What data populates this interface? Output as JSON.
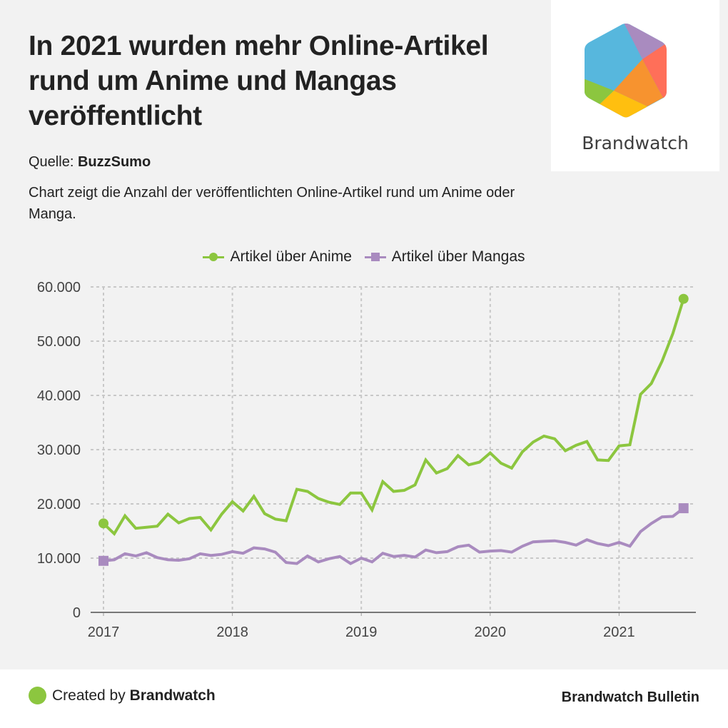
{
  "header": {
    "title": "In 2021 wurden mehr Online-Artikel rund um Anime und Mangas veröffentlicht",
    "source_label": "Quelle:",
    "source_name": "BuzzSumo",
    "subtitle": "Chart zeigt die Anzahl der veröffentlichten Online-Artikel rund um Anime oder Manga."
  },
  "logo": {
    "wordmark": "Brandwatch",
    "colors": [
      "#57b7dd",
      "#a98bbf",
      "#ff6f59",
      "#f7932f",
      "#ffbf0f",
      "#8cc63f"
    ]
  },
  "footer": {
    "created_prefix": "Created by",
    "created_brand": "Brandwatch",
    "right_label": "Brandwatch Bulletin",
    "dot_color": "#8cc63f"
  },
  "chart_data": {
    "type": "line",
    "title": "In 2021 wurden mehr Online-Artikel rund um Anime und Mangas veröffentlicht",
    "xlabel": "",
    "ylabel": "",
    "x_start": "2017-01",
    "x_interval": "month",
    "x_tick_labels": [
      "2017",
      "2018",
      "2019",
      "2020",
      "2021"
    ],
    "y_ticks": [
      0,
      10000,
      20000,
      30000,
      40000,
      50000,
      60000
    ],
    "y_tick_labels": [
      "0",
      "10.000",
      "20.000",
      "30.000",
      "40.000",
      "50.000",
      "60.000"
    ],
    "ylim": [
      0,
      60000
    ],
    "xlim_months": [
      0,
      55
    ],
    "grid": true,
    "legend_position": "top-center",
    "series": [
      {
        "name": "Artikel über Anime",
        "color": "#8cc63f",
        "marker": "circle",
        "values": [
          16400,
          14500,
          17800,
          15500,
          15700,
          15900,
          18100,
          16500,
          17300,
          17500,
          15200,
          18100,
          20400,
          18700,
          21400,
          18200,
          17200,
          16900,
          22700,
          22300,
          21000,
          20300,
          19900,
          22000,
          22000,
          18900,
          24100,
          22300,
          22500,
          23500,
          28100,
          25700,
          26500,
          28900,
          27200,
          27700,
          29400,
          27500,
          26600,
          29600,
          31400,
          32500,
          32000,
          29800,
          30800,
          31500,
          28100,
          28000,
          30700,
          30900,
          40200,
          42200,
          46300,
          51400,
          57800
        ]
      },
      {
        "name": "Artikel über Mangas",
        "color": "#a98bbf",
        "marker": "square",
        "values": [
          9500,
          9700,
          10800,
          10400,
          11000,
          10100,
          9700,
          9600,
          9900,
          10800,
          10500,
          10700,
          11200,
          10900,
          11900,
          11700,
          11100,
          9200,
          9000,
          10400,
          9300,
          9900,
          10300,
          9000,
          10000,
          9300,
          10900,
          10300,
          10500,
          10200,
          11500,
          11000,
          11200,
          12100,
          12400,
          11100,
          11300,
          11400,
          11100,
          12200,
          13000,
          13100,
          13200,
          12900,
          12400,
          13400,
          12700,
          12300,
          12900,
          12200,
          14900,
          16400,
          17600,
          17700,
          19200
        ]
      }
    ]
  }
}
